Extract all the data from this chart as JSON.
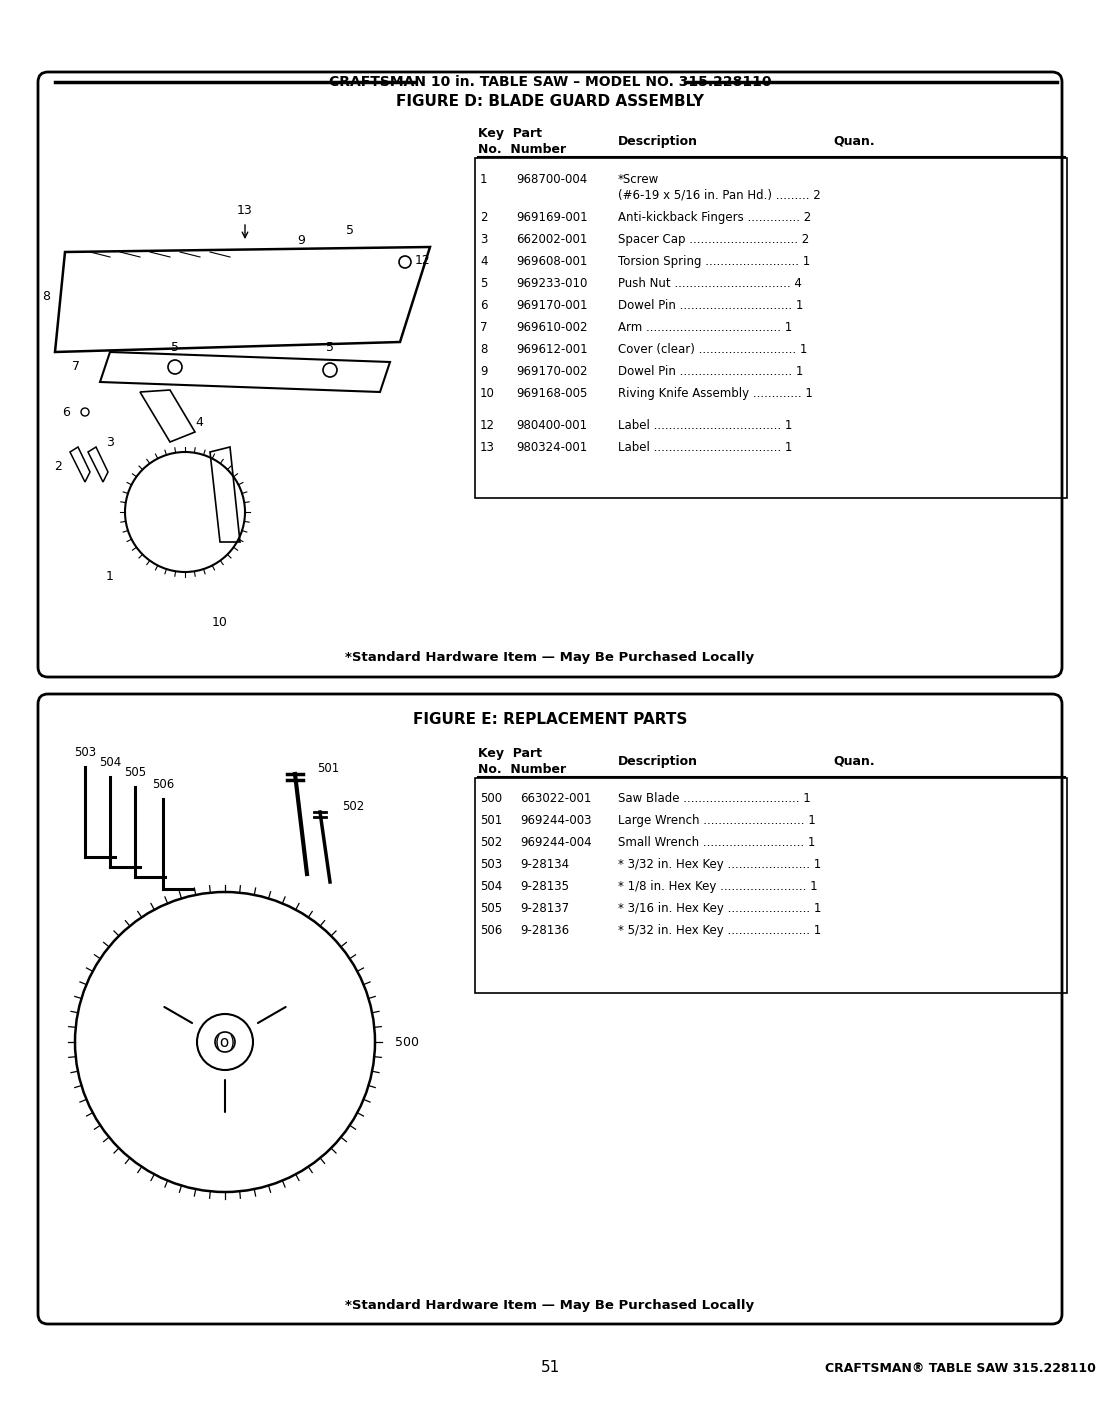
{
  "page_bg": "#ffffff",
  "page_number": "51",
  "craftsman_footer": "CRAFTSMAN® TABLE SAW 315.228110",
  "figure_d": {
    "header_title": "CRAFTSMAN 10 in. TABLE SAW – MODEL NO. 315.228110",
    "title": "FIGURE D: BLADE GUARD ASSEMBLY",
    "parts": [
      {
        "key": "1",
        "number": "968700-004",
        "desc": "*Screw",
        "desc2": "(#6-19 x 5/16 in. Pan Hd.) ......... 2"
      },
      {
        "key": "2",
        "number": "969169-001",
        "desc": "Anti-kickback Fingers .............. 2",
        "desc2": ""
      },
      {
        "key": "3",
        "number": "662002-001",
        "desc": "Spacer Cap ............................. 2",
        "desc2": ""
      },
      {
        "key": "4",
        "number": "969608-001",
        "desc": "Torsion Spring ......................... 1",
        "desc2": ""
      },
      {
        "key": "5",
        "number": "969233-010",
        "desc": "Push Nut ............................... 4",
        "desc2": ""
      },
      {
        "key": "6",
        "number": "969170-001",
        "desc": "Dowel Pin .............................. 1",
        "desc2": ""
      },
      {
        "key": "7",
        "number": "969610-002",
        "desc": "Arm .................................... 1",
        "desc2": ""
      },
      {
        "key": "8",
        "number": "969612-001",
        "desc": "Cover (clear) .......................... 1",
        "desc2": ""
      },
      {
        "key": "9",
        "number": "969170-002",
        "desc": "Dowel Pin .............................. 1",
        "desc2": ""
      },
      {
        "key": "10",
        "number": "969168-005",
        "desc": "Riving Knife Assembly ............. 1",
        "desc2": ""
      },
      {
        "key": "",
        "number": "",
        "desc": "",
        "desc2": ""
      },
      {
        "key": "12",
        "number": "980400-001",
        "desc": "Label .................................. 1",
        "desc2": ""
      },
      {
        "key": "13",
        "number": "980324-001",
        "desc": "Label .................................. 1",
        "desc2": ""
      }
    ],
    "footer_note": "*Standard Hardware Item — May Be Purchased Locally"
  },
  "figure_e": {
    "title": "FIGURE E: REPLACEMENT PARTS",
    "parts": [
      {
        "key": "500",
        "number": "663022-001",
        "desc": "Saw Blade ............................... 1"
      },
      {
        "key": "501",
        "number": "969244-003",
        "desc": "Large Wrench ........................... 1"
      },
      {
        "key": "502",
        "number": "969244-004",
        "desc": "Small Wrench ........................... 1"
      },
      {
        "key": "503",
        "number": "9-28134",
        "desc": "* 3/32 in. Hex Key ...................... 1"
      },
      {
        "key": "504",
        "number": "9-28135",
        "desc": "* 1/8 in. Hex Key ....................... 1"
      },
      {
        "key": "505",
        "number": "9-28137",
        "desc": "* 3/16 in. Hex Key ...................... 1"
      },
      {
        "key": "506",
        "number": "9-28136",
        "desc": "* 5/32 in. Hex Key ...................... 1"
      }
    ],
    "footer_note": "*Standard Hardware Item — May Be Purchased Locally"
  }
}
